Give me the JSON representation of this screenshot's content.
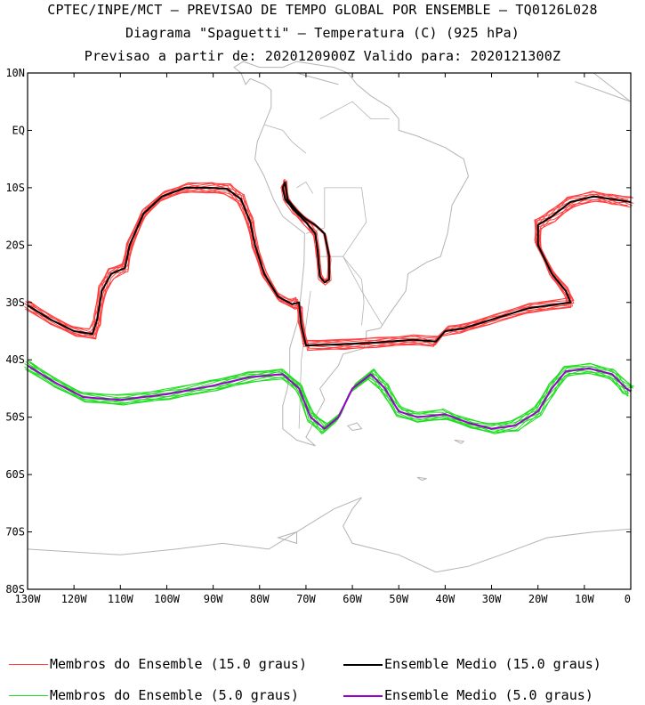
{
  "title": {
    "line1": "CPTEC/INPE/MCT — PREVISAO DE TEMPO GLOBAL POR ENSEMBLE — TQ0126L028",
    "line2": "Diagrama \"Spaguetti\" — Temperatura (C) (925 hPa)",
    "line3": "Previsao a partir de: 2020120900Z  Valido para: 2020121300Z"
  },
  "map": {
    "region": "South America / South Atlantic / South Pacific",
    "lon_range": [
      -130,
      0
    ],
    "lat_range": [
      -80,
      10
    ],
    "lat_ticks": [
      "10N",
      "EQ",
      "10S",
      "20S",
      "30S",
      "40S",
      "50S",
      "60S",
      "70S",
      "80S"
    ],
    "lon_ticks": [
      "130W",
      "120W",
      "110W",
      "100W",
      "90W",
      "80W",
      "70W",
      "60W",
      "50W",
      "40W",
      "30W",
      "20W",
      "10W",
      "0"
    ],
    "coastline_color": "#b4b4b4",
    "border_color": "#b4b4b4"
  },
  "series": {
    "t15_members": {
      "label": "Membros do Ensemble (15.0 graus)",
      "color": "#ff4040",
      "members": 10,
      "lat_lon": [
        [
          -30.5,
          -130
        ],
        [
          -33,
          -125
        ],
        [
          -35,
          -120
        ],
        [
          -35.5,
          -116
        ],
        [
          -33,
          -115
        ],
        [
          -28,
          -114
        ],
        [
          -25,
          -112
        ],
        [
          -24,
          -109
        ],
        [
          -20,
          -108
        ],
        [
          -14.5,
          -105
        ],
        [
          -11.5,
          -101
        ],
        [
          -10,
          -96
        ],
        [
          -10,
          -91
        ],
        [
          -10.2,
          -87
        ],
        [
          -12,
          -84
        ],
        [
          -16,
          -82
        ],
        [
          -20,
          -81
        ],
        [
          -25,
          -79
        ],
        [
          -29,
          -76
        ],
        [
          -30.3,
          -73
        ],
        [
          -30,
          -71.5
        ],
        [
          -34,
          -71
        ],
        [
          -37.5,
          -70
        ],
        [
          -37.3,
          -62
        ],
        [
          -37,
          -55
        ],
        [
          -36.5,
          -47
        ],
        [
          -36.8,
          -42
        ],
        [
          -35,
          -40
        ],
        [
          -34.5,
          -36
        ],
        [
          -33,
          -30
        ],
        [
          -31,
          -22
        ],
        [
          -30,
          -13
        ],
        [
          -28,
          -14
        ],
        [
          -25,
          -17
        ],
        [
          -20,
          -20
        ],
        [
          -16.5,
          -20
        ],
        [
          -15,
          -17
        ],
        [
          -12.5,
          -13
        ],
        [
          -11.5,
          -8
        ],
        [
          -12,
          -4
        ],
        [
          -12.5,
          0
        ]
      ]
    },
    "t15_mean": {
      "label": "Ensemble Medio (15.0 graus)",
      "color": "#000000"
    },
    "t15_andes": {
      "lat_lon": [
        [
          -9,
          -74.5
        ],
        [
          -12,
          -74
        ],
        [
          -14,
          -72
        ],
        [
          -15.5,
          -70
        ],
        [
          -16.5,
          -68
        ],
        [
          -18,
          -66
        ],
        [
          -22,
          -65
        ],
        [
          -26,
          -65
        ],
        [
          -26.5,
          -66
        ],
        [
          -25.5,
          -67
        ],
        [
          -21,
          -67.5
        ],
        [
          -18,
          -68
        ],
        [
          -16,
          -70
        ],
        [
          -14,
          -72.5
        ],
        [
          -12,
          -74.5
        ],
        [
          -10,
          -75
        ],
        [
          -9,
          -74.5
        ]
      ]
    },
    "t5_members": {
      "label": "Membros do Ensemble (5.0 graus)",
      "color": "#22dd22",
      "members": 10,
      "lat_lon": [
        [
          -41,
          -130
        ],
        [
          -44,
          -124
        ],
        [
          -46.5,
          -118
        ],
        [
          -47,
          -110
        ],
        [
          -46,
          -100
        ],
        [
          -44.5,
          -90
        ],
        [
          -43,
          -82
        ],
        [
          -42.5,
          -75
        ],
        [
          -45,
          -71.5
        ],
        [
          -50,
          -69
        ],
        [
          -52,
          -66
        ],
        [
          -50,
          -63
        ],
        [
          -45,
          -60
        ],
        [
          -42.5,
          -56
        ],
        [
          -45,
          -53
        ],
        [
          -49,
          -50
        ],
        [
          -50,
          -46
        ],
        [
          -49.5,
          -40
        ],
        [
          -51,
          -35
        ],
        [
          -52,
          -30
        ],
        [
          -51.5,
          -25
        ],
        [
          -49,
          -20
        ],
        [
          -45,
          -17
        ],
        [
          -42,
          -14
        ],
        [
          -41.5,
          -9
        ],
        [
          -42.5,
          -4
        ],
        [
          -45,
          -1
        ],
        [
          -45.5,
          0
        ]
      ]
    },
    "t5_mean": {
      "label": "Ensemble Medio (5.0 graus)",
      "color": "#9900cc"
    }
  },
  "legend": {
    "row1_left": "Membros do Ensemble (15.0 graus)",
    "row1_right": "Ensemble Medio (15.0 graus)",
    "row2_left": "Membros do Ensemble (5.0 graus)",
    "row2_right": "Ensemble Medio (5.0 graus)"
  }
}
